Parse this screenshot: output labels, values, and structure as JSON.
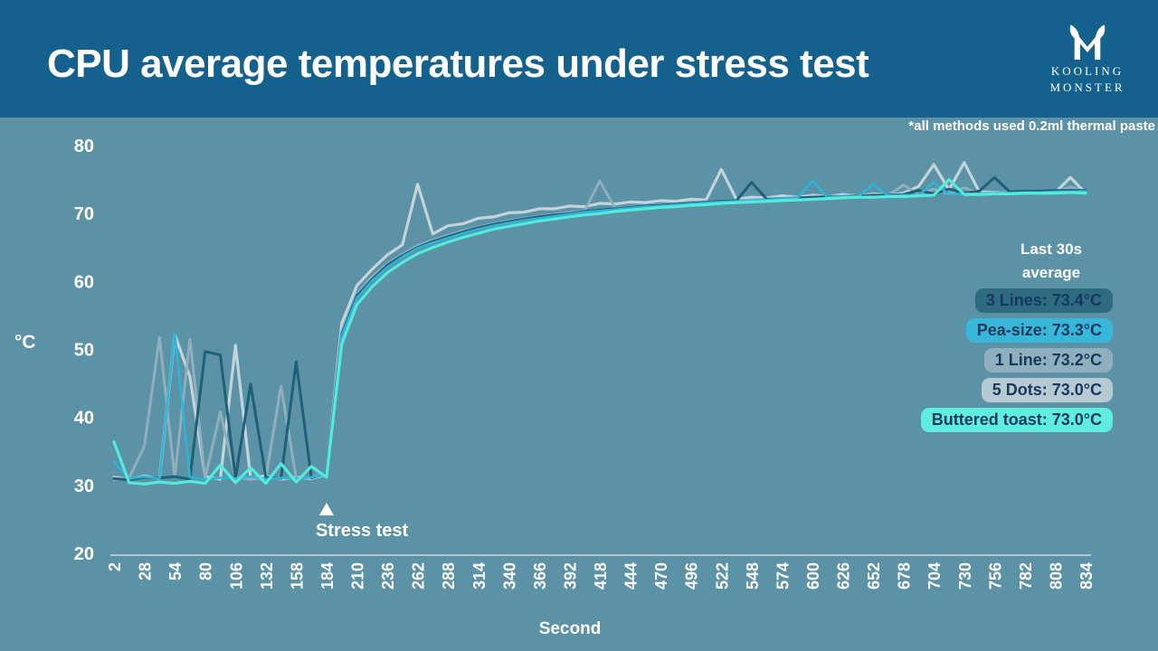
{
  "header": {
    "title": "CPU average temperatures under stress test",
    "logo_line1": "KOOLING",
    "logo_line2": "MONSTER"
  },
  "note": "*all methods used 0.2ml thermal paste",
  "legend": {
    "heading_line1": "Last 30s",
    "heading_line2": "average",
    "text_color": "#16395c",
    "badges": [
      {
        "method": "3 Lines",
        "value_c": 73.4,
        "label": "3 Lines: 73.4°C",
        "bg": "#2e6b80"
      },
      {
        "method": "Pea-size",
        "value_c": 73.3,
        "label": "Pea-size: 73.3°C",
        "bg": "#38b7da"
      },
      {
        "method": "1 Line",
        "value_c": 73.2,
        "label": "1 Line: 73.2°C",
        "bg": "#8fafbf"
      },
      {
        "method": "5 Dots",
        "value_c": 73.0,
        "label": "5 Dots: 73.0°C",
        "bg": "#b7cad3"
      },
      {
        "method": "Buttered toast",
        "value_c": 73.0,
        "label": "Buttered toast: 73.0°C",
        "bg": "#5fede0"
      }
    ]
  },
  "colors": {
    "background": "#5b92a5",
    "header_bar": "#15618e",
    "axis_line": "#ccd9e0",
    "text": "#ffffff"
  },
  "chart_data": {
    "type": "line",
    "title": "CPU average temperatures under stress test",
    "xlabel": "Second",
    "ylabel": "°C",
    "ylim": [
      20,
      80
    ],
    "xlim": [
      2,
      834
    ],
    "grid": false,
    "legend_position": "right",
    "yticks": [
      20,
      30,
      40,
      50,
      60,
      70,
      80
    ],
    "xticks": [
      2,
      28,
      54,
      80,
      106,
      132,
      158,
      184,
      210,
      236,
      262,
      288,
      314,
      340,
      366,
      392,
      418,
      444,
      470,
      496,
      522,
      548,
      574,
      600,
      626,
      652,
      678,
      704,
      730,
      756,
      782,
      808,
      834
    ],
    "annotation": {
      "label": "Stress test",
      "x": 184,
      "marker": "triangle-up"
    },
    "x": [
      2,
      15,
      28,
      41,
      54,
      67,
      80,
      93,
      106,
      119,
      132,
      145,
      158,
      171,
      184,
      197,
      210,
      223,
      236,
      249,
      262,
      275,
      288,
      301,
      314,
      327,
      340,
      353,
      366,
      379,
      392,
      405,
      418,
      431,
      444,
      457,
      470,
      483,
      496,
      509,
      522,
      535,
      548,
      561,
      574,
      587,
      600,
      613,
      626,
      639,
      652,
      665,
      678,
      691,
      704,
      717,
      730,
      743,
      756,
      769,
      782,
      795,
      808,
      821,
      834
    ],
    "series": [
      {
        "name": "5 Dots",
        "color": "#c3d4dc",
        "last_30s_avg": 73.0,
        "values": [
          31.2,
          30.9,
          31.4,
          31.0,
          52.2,
          46.0,
          31.3,
          30.9,
          50.6,
          31.1,
          31.4,
          30.9,
          31.2,
          31.0,
          31.6,
          53.8,
          59.4,
          61.8,
          63.9,
          65.4,
          74.3,
          67.0,
          68.2,
          68.5,
          69.3,
          69.5,
          70.1,
          70.2,
          70.7,
          70.7,
          71.1,
          71.0,
          71.5,
          71.4,
          71.7,
          71.6,
          71.9,
          71.8,
          72.1,
          72.0,
          76.5,
          72.1,
          72.4,
          72.3,
          72.6,
          72.4,
          72.7,
          72.5,
          72.8,
          72.6,
          72.9,
          72.7,
          73.0,
          74.0,
          77.2,
          73.5,
          77.5,
          73.2,
          73.1,
          73.0,
          73.1,
          73.0,
          73.1,
          75.3,
          73.0
        ]
      },
      {
        "name": "1 Line",
        "color": "#8fafbf",
        "last_30s_avg": 73.2,
        "values": [
          30.8,
          31.1,
          35.8,
          51.8,
          31.2,
          51.5,
          31.0,
          40.8,
          31.2,
          30.9,
          31.1,
          44.6,
          31.0,
          31.2,
          31.8,
          52.6,
          58.2,
          60.7,
          62.6,
          64.0,
          65.3,
          66.1,
          66.8,
          67.5,
          68.0,
          68.5,
          68.9,
          69.3,
          69.6,
          69.9,
          70.2,
          70.4,
          74.8,
          70.8,
          71.0,
          71.1,
          71.3,
          71.4,
          71.6,
          71.7,
          71.8,
          71.9,
          72.0,
          72.1,
          72.2,
          72.3,
          72.4,
          72.4,
          72.5,
          72.5,
          72.6,
          72.7,
          74.2,
          72.8,
          73.6,
          72.9,
          73.8,
          73.0,
          73.0,
          73.1,
          73.1,
          73.2,
          73.2,
          73.9,
          73.2
        ]
      },
      {
        "name": "3 Lines",
        "color": "#1f6078",
        "last_30s_avg": 73.4,
        "values": [
          31.0,
          30.8,
          31.2,
          31.1,
          31.3,
          30.9,
          49.7,
          49.2,
          31.1,
          44.9,
          31.2,
          31.0,
          48.2,
          31.1,
          31.7,
          52.2,
          57.9,
          60.3,
          62.4,
          63.8,
          65.0,
          65.9,
          66.6,
          67.3,
          67.9,
          68.4,
          68.8,
          69.2,
          69.5,
          69.8,
          70.0,
          70.3,
          70.5,
          70.7,
          70.9,
          71.1,
          71.2,
          71.4,
          71.5,
          71.7,
          71.8,
          71.9,
          74.6,
          72.1,
          72.2,
          72.3,
          72.4,
          72.5,
          72.5,
          72.6,
          72.7,
          72.7,
          72.8,
          73.4,
          72.9,
          73.6,
          73.0,
          73.3,
          75.3,
          73.2,
          73.3,
          73.3,
          73.4,
          73.4,
          73.4
        ]
      },
      {
        "name": "Pea-size",
        "color": "#2fb4d9",
        "last_30s_avg": 73.3,
        "values": [
          33.4,
          31.0,
          31.3,
          31.0,
          52.4,
          31.2,
          30.9,
          31.1,
          31.0,
          31.3,
          30.9,
          31.1,
          31.0,
          31.2,
          31.6,
          52.0,
          57.6,
          60.1,
          62.1,
          63.6,
          64.9,
          65.7,
          66.4,
          67.1,
          67.7,
          68.2,
          68.6,
          69.0,
          69.3,
          69.6,
          69.9,
          70.2,
          70.4,
          70.6,
          70.8,
          71.0,
          71.1,
          71.3,
          71.4,
          71.6,
          71.7,
          71.8,
          71.9,
          72.0,
          72.2,
          72.3,
          74.8,
          72.4,
          72.5,
          72.5,
          74.3,
          72.6,
          72.7,
          72.7,
          74.6,
          72.8,
          72.9,
          72.9,
          73.0,
          73.0,
          73.1,
          73.1,
          73.2,
          73.2,
          73.3
        ]
      },
      {
        "name": "Buttered toast",
        "color": "#55ebdc",
        "last_30s_avg": 73.0,
        "values": [
          36.4,
          30.4,
          30.2,
          30.5,
          30.3,
          30.6,
          30.3,
          33.0,
          30.4,
          32.6,
          30.3,
          33.2,
          30.5,
          32.8,
          31.2,
          50.8,
          56.6,
          59.2,
          61.3,
          62.8,
          64.1,
          65.0,
          65.8,
          66.5,
          67.1,
          67.7,
          68.1,
          68.5,
          68.9,
          69.2,
          69.5,
          69.8,
          70.0,
          70.3,
          70.5,
          70.7,
          70.9,
          71.0,
          71.2,
          71.3,
          71.5,
          71.6,
          71.7,
          71.8,
          71.9,
          72.0,
          72.1,
          72.2,
          72.3,
          72.4,
          72.4,
          72.5,
          72.5,
          72.6,
          72.7,
          75.0,
          72.8,
          72.8,
          72.9,
          72.9,
          73.0,
          73.0,
          73.0,
          73.1,
          73.0
        ]
      }
    ]
  }
}
